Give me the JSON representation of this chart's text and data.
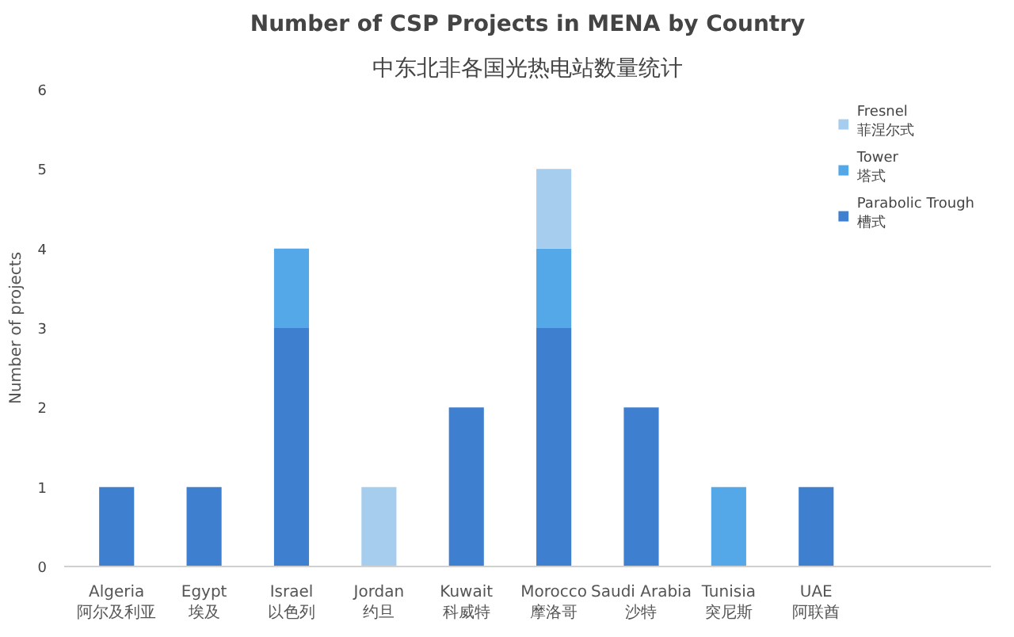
{
  "chart_data": {
    "type": "bar",
    "stacked": true,
    "title": "Number of CSP Projects in MENA by Country",
    "subtitle": "中东北非各国光热电站数量统计",
    "ylabel": "Number of projects",
    "categories": [
      "Algeria\n阿尔及利亚",
      "Egypt\n埃及",
      "Israel\n以色列",
      "Jordan\n约旦",
      "Kuwait\n科威特",
      "Morocco\n摩洛哥",
      "Saudi Arabia\n沙特",
      "Tunisia\n突尼斯",
      "UAE\n阿联酋"
    ],
    "series": [
      {
        "name": "Parabolic Trough\n槽式",
        "color": "#3f7fcf",
        "values": [
          1,
          1,
          3,
          0,
          2,
          3,
          2,
          0,
          1
        ]
      },
      {
        "name": "Tower\n塔式",
        "color": "#55a8e8",
        "values": [
          0,
          0,
          1,
          0,
          0,
          1,
          0,
          1,
          0
        ]
      },
      {
        "name": "Fresnel\n菲涅尔式",
        "color": "#a6cdee",
        "values": [
          0,
          0,
          0,
          1,
          0,
          1,
          0,
          0,
          0
        ]
      }
    ],
    "ylim": [
      0,
      6
    ],
    "yticks": [
      0,
      1,
      2,
      3,
      4,
      5,
      6
    ],
    "grid": false,
    "legend": "right"
  }
}
